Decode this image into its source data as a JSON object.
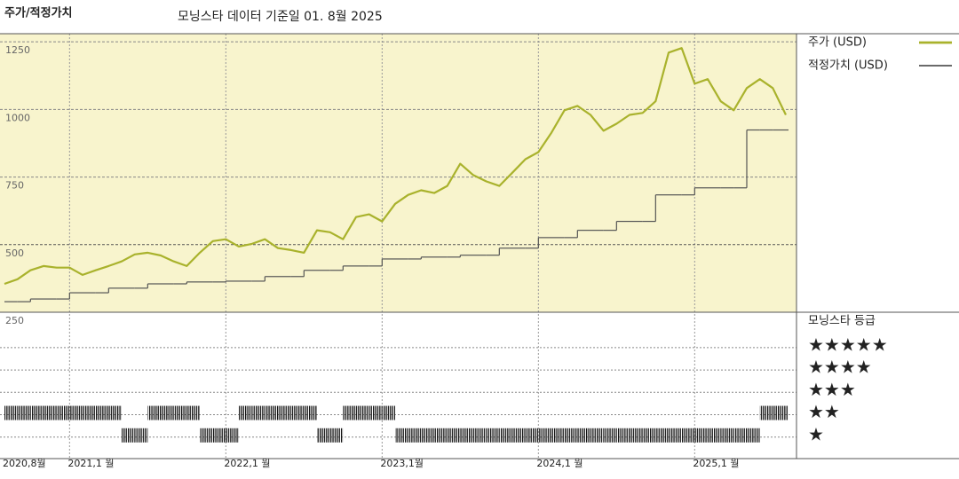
{
  "header": {
    "title": "주가/적정가치",
    "subtitle": "모닝스타 데이터 기준일 01. 8월 2025"
  },
  "chart_data": [
    {
      "type": "line",
      "xlim": [
        "2020-08",
        "2025-08"
      ],
      "xticks": [
        {
          "value": "2020-08",
          "label": "2020,8월"
        },
        {
          "value": "2021-01",
          "label": "2021,1 월"
        },
        {
          "value": "2022-01",
          "label": "2022,1 월"
        },
        {
          "value": "2023-01",
          "label": "2023,1월"
        },
        {
          "value": "2024-01",
          "label": "2024,1 월"
        },
        {
          "value": "2025-01",
          "label": "2025,1 월"
        }
      ],
      "ylim": [
        250,
        1280
      ],
      "yticks": [
        250,
        500,
        750,
        1000,
        1250
      ],
      "grid": true,
      "background": "#f8f4cd",
      "x": [
        "2020-08",
        "2020-09",
        "2020-10",
        "2020-11",
        "2020-12",
        "2021-01",
        "2021-02",
        "2021-03",
        "2021-04",
        "2021-05",
        "2021-06",
        "2021-07",
        "2021-08",
        "2021-09",
        "2021-10",
        "2021-11",
        "2021-12",
        "2022-01",
        "2022-02",
        "2022-03",
        "2022-04",
        "2022-05",
        "2022-06",
        "2022-07",
        "2022-08",
        "2022-09",
        "2022-10",
        "2022-11",
        "2022-12",
        "2023-01",
        "2023-02",
        "2023-03",
        "2023-04",
        "2023-05",
        "2023-06",
        "2023-07",
        "2023-08",
        "2023-09",
        "2023-10",
        "2023-11",
        "2023-12",
        "2024-01",
        "2024-02",
        "2024-03",
        "2024-04",
        "2024-05",
        "2024-06",
        "2024-07",
        "2024-08",
        "2024-09",
        "2024-10",
        "2024-11",
        "2024-12",
        "2025-01",
        "2025-02",
        "2025-03",
        "2025-04",
        "2025-05",
        "2025-06",
        "2025-07",
        "2025-08"
      ],
      "series": [
        {
          "name": "주가 (USD)",
          "color": "#a9b22c",
          "width": 2.2,
          "step": false,
          "values": [
            355,
            372,
            405,
            421,
            415,
            415,
            388,
            405,
            421,
            438,
            464,
            470,
            460,
            438,
            421,
            470,
            513,
            520,
            493,
            503,
            520,
            487,
            480,
            470,
            553,
            546,
            520,
            602,
            612,
            586,
            651,
            684,
            701,
            691,
            717,
            799,
            757,
            734,
            717,
            766,
            816,
            842,
            914,
            997,
            1013,
            980,
            921,
            947,
            980,
            987,
            1030,
            1210,
            1227,
            1095,
            1112,
            1030,
            997,
            1079,
            1112,
            1079,
            980
          ]
        },
        {
          "name": "적정가치 (USD)",
          "color": "#555555",
          "width": 1.2,
          "step": true,
          "values": [
            289,
            289,
            299,
            299,
            299,
            322,
            322,
            322,
            339,
            339,
            339,
            355,
            355,
            355,
            362,
            362,
            362,
            365,
            365,
            365,
            382,
            382,
            382,
            405,
            405,
            405,
            421,
            421,
            421,
            447,
            447,
            447,
            454,
            454,
            454,
            461,
            461,
            461,
            487,
            487,
            487,
            526,
            526,
            526,
            553,
            553,
            553,
            586,
            586,
            586,
            684,
            684,
            684,
            710,
            710,
            710,
            710,
            924,
            924,
            924,
            924
          ]
        }
      ]
    },
    {
      "type": "rating",
      "title": "모닝스타 등급",
      "xlim": [
        "2020-08",
        "2025-08"
      ],
      "ylim": [
        0,
        6.5
      ],
      "yticks": [
        {
          "value": 5,
          "label": "★★★★★"
        },
        {
          "value": 4,
          "label": "★★★★"
        },
        {
          "value": 3,
          "label": "★★★"
        },
        {
          "value": 2,
          "label": "★★"
        },
        {
          "value": 1,
          "label": "★"
        }
      ],
      "color": "#111111",
      "x": [
        "2020-08",
        "2020-09",
        "2020-10",
        "2020-11",
        "2020-12",
        "2021-01",
        "2021-02",
        "2021-03",
        "2021-04",
        "2021-05",
        "2021-06",
        "2021-07",
        "2021-08",
        "2021-09",
        "2021-10",
        "2021-11",
        "2021-12",
        "2022-01",
        "2022-02",
        "2022-03",
        "2022-04",
        "2022-05",
        "2022-06",
        "2022-07",
        "2022-08",
        "2022-09",
        "2022-10",
        "2022-11",
        "2022-12",
        "2023-01",
        "2023-02",
        "2023-03",
        "2023-04",
        "2023-05",
        "2023-06",
        "2023-07",
        "2023-08",
        "2023-09",
        "2023-10",
        "2023-11",
        "2023-12",
        "2024-01",
        "2024-02",
        "2024-03",
        "2024-04",
        "2024-05",
        "2024-06",
        "2024-07",
        "2024-08",
        "2024-09",
        "2024-10",
        "2024-11",
        "2024-12",
        "2025-01",
        "2025-02",
        "2025-03",
        "2025-04",
        "2025-05",
        "2025-06",
        "2025-07",
        "2025-08"
      ],
      "values": [
        2,
        2,
        2,
        2,
        2,
        2,
        2,
        2,
        2,
        1,
        1,
        2,
        2,
        2,
        2,
        1,
        1,
        1,
        2,
        2,
        2,
        2,
        2,
        2,
        1,
        1,
        2,
        2,
        2,
        2,
        1,
        1,
        1,
        1,
        1,
        1,
        1,
        1,
        1,
        1,
        1,
        1,
        1,
        1,
        1,
        1,
        1,
        1,
        1,
        1,
        1,
        1,
        1,
        1,
        1,
        1,
        1,
        1,
        2,
        2,
        2
      ]
    }
  ]
}
